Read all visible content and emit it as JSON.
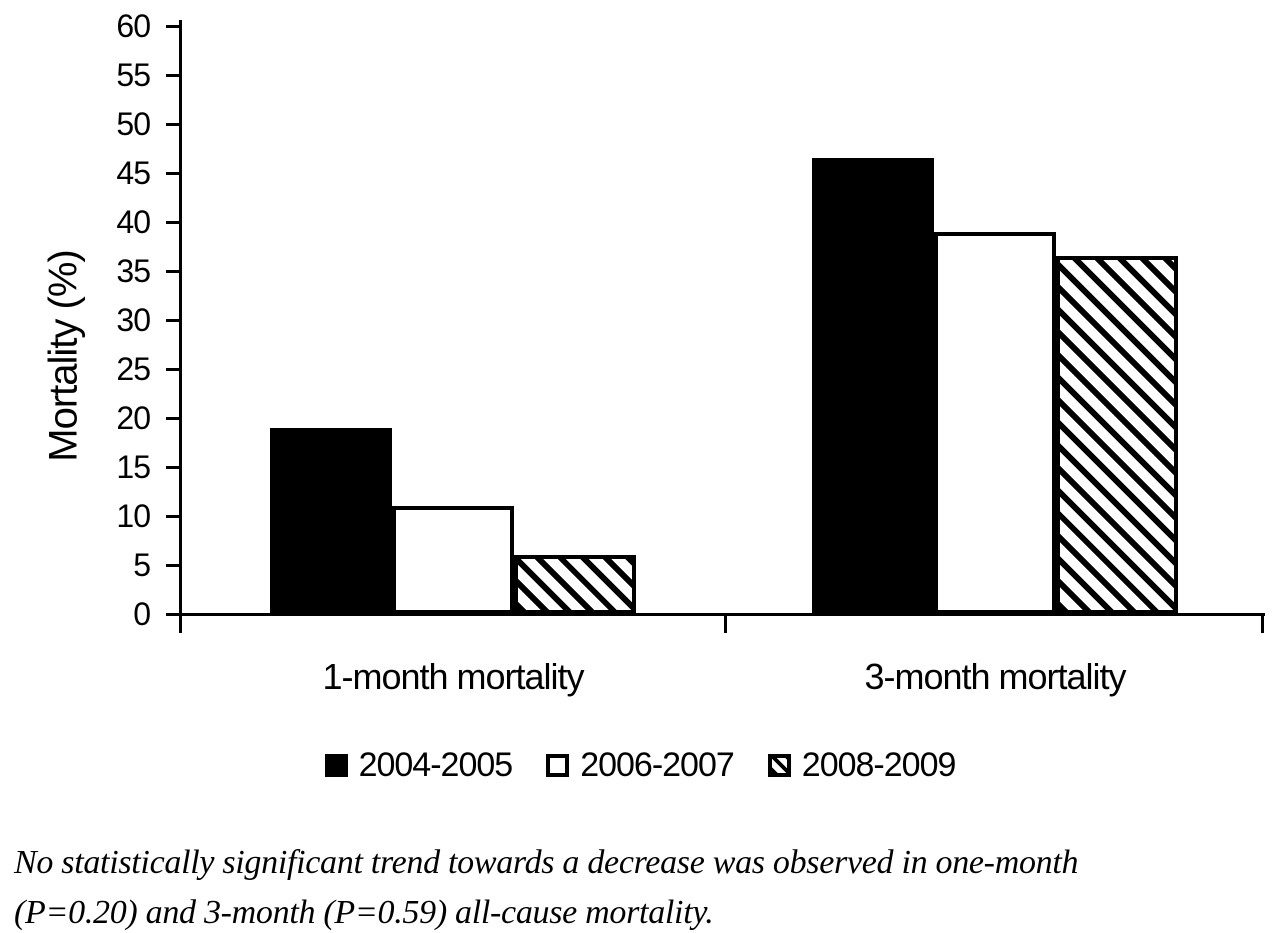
{
  "chart_data": {
    "type": "bar",
    "categories": [
      "1-month mortality",
      "3-month mortality"
    ],
    "series": [
      {
        "name": "2004-2005",
        "pattern": "solid-black",
        "values": [
          19,
          46.5
        ]
      },
      {
        "name": "2006-2007",
        "pattern": "white-outline",
        "values": [
          11,
          39
        ]
      },
      {
        "name": "2008-2009",
        "pattern": "diagonal-hatch",
        "values": [
          6,
          36.5
        ]
      }
    ],
    "title": "",
    "xlabel": "",
    "ylabel": "Mortality (%)",
    "ylim": [
      0,
      60
    ],
    "ytick_step": 5,
    "grid": false,
    "legend_position": "bottom-center",
    "bar_color": "#000000",
    "background_color": "#ffffff"
  },
  "caption": {
    "line1": "No statistically significant trend towards a decrease was observed in one-month",
    "line2": "(P=0.20) and 3-month (P=0.59) all-cause mortality."
  }
}
